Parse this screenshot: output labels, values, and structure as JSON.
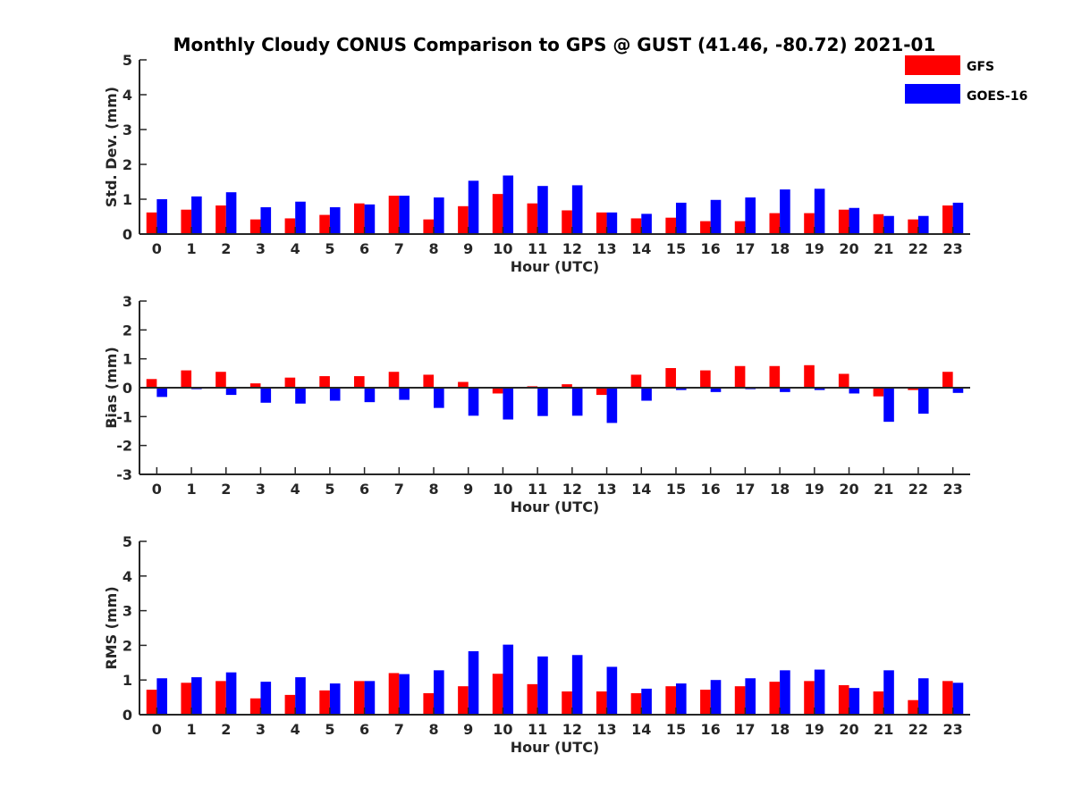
{
  "title": "Monthly Cloudy CONUS Comparison to GPS @ GUST (41.46, -80.72) 2021-01",
  "legend": [
    {
      "name": "GFS",
      "color": "#ff0000"
    },
    {
      "name": "GOES-16",
      "color": "#0000ff"
    }
  ],
  "chart_data": [
    {
      "type": "bar",
      "xlabel": "Hour (UTC)",
      "ylabel": "Std. Dev. (mm)",
      "ylim": [
        0,
        5
      ],
      "yticks": [
        0,
        1,
        2,
        3,
        4,
        5
      ],
      "categories": [
        "0",
        "1",
        "2",
        "3",
        "4",
        "5",
        "6",
        "7",
        "8",
        "9",
        "10",
        "11",
        "12",
        "13",
        "14",
        "15",
        "16",
        "17",
        "18",
        "19",
        "20",
        "21",
        "22",
        "23"
      ],
      "series": [
        {
          "name": "GFS",
          "color": "#ff0000",
          "values": [
            0.62,
            0.7,
            0.82,
            0.42,
            0.45,
            0.55,
            0.88,
            1.1,
            0.42,
            0.8,
            1.15,
            0.88,
            0.68,
            0.62,
            0.45,
            0.47,
            0.37,
            0.37,
            0.6,
            0.6,
            0.7,
            0.57,
            0.42,
            0.82
          ]
        },
        {
          "name": "GOES-16",
          "color": "#0000ff",
          "values": [
            1.0,
            1.08,
            1.2,
            0.77,
            0.93,
            0.77,
            0.85,
            1.1,
            1.05,
            1.53,
            1.68,
            1.38,
            1.4,
            0.62,
            0.58,
            0.9,
            0.98,
            1.05,
            1.28,
            1.3,
            0.75,
            0.52,
            0.52,
            0.9
          ]
        }
      ],
      "legend": "top-right",
      "grid": false
    },
    {
      "type": "bar",
      "xlabel": "Hour (UTC)",
      "ylabel": "Bias (mm)",
      "ylim": [
        -3,
        3
      ],
      "yticks": [
        -3,
        -2,
        -1,
        0,
        1,
        2,
        3
      ],
      "categories": [
        "0",
        "1",
        "2",
        "3",
        "4",
        "5",
        "6",
        "7",
        "8",
        "9",
        "10",
        "11",
        "12",
        "13",
        "14",
        "15",
        "16",
        "17",
        "18",
        "19",
        "20",
        "21",
        "22",
        "23"
      ],
      "series": [
        {
          "name": "GFS",
          "color": "#ff0000",
          "values": [
            0.3,
            0.6,
            0.55,
            0.15,
            0.35,
            0.4,
            0.4,
            0.55,
            0.45,
            0.2,
            -0.2,
            0.05,
            0.12,
            -0.25,
            0.45,
            0.68,
            0.6,
            0.75,
            0.75,
            0.78,
            0.48,
            -0.3,
            -0.08,
            0.55
          ]
        },
        {
          "name": "GOES-16",
          "color": "#0000ff",
          "values": [
            -0.32,
            -0.05,
            -0.25,
            -0.52,
            -0.55,
            -0.45,
            -0.5,
            -0.42,
            -0.7,
            -0.97,
            -1.1,
            -0.98,
            -0.97,
            -1.22,
            -0.45,
            -0.08,
            -0.15,
            -0.05,
            -0.15,
            -0.08,
            -0.2,
            -1.18,
            -0.9,
            -0.18
          ]
        }
      ],
      "grid": false
    },
    {
      "type": "bar",
      "xlabel": "Hour (UTC)",
      "ylabel": "RMS (mm)",
      "ylim": [
        0,
        5
      ],
      "yticks": [
        0,
        1,
        2,
        3,
        4,
        5
      ],
      "categories": [
        "0",
        "1",
        "2",
        "3",
        "4",
        "5",
        "6",
        "7",
        "8",
        "9",
        "10",
        "11",
        "12",
        "13",
        "14",
        "15",
        "16",
        "17",
        "18",
        "19",
        "20",
        "21",
        "22",
        "23"
      ],
      "series": [
        {
          "name": "GFS",
          "color": "#ff0000",
          "values": [
            0.72,
            0.92,
            0.97,
            0.47,
            0.57,
            0.7,
            0.97,
            1.2,
            0.62,
            0.82,
            1.18,
            0.88,
            0.67,
            0.67,
            0.62,
            0.82,
            0.72,
            0.82,
            0.95,
            0.97,
            0.85,
            0.67,
            0.42,
            0.97
          ]
        },
        {
          "name": "GOES-16",
          "color": "#0000ff",
          "values": [
            1.05,
            1.08,
            1.22,
            0.95,
            1.08,
            0.9,
            0.97,
            1.17,
            1.28,
            1.83,
            2.02,
            1.68,
            1.72,
            1.38,
            0.75,
            0.9,
            1.0,
            1.05,
            1.28,
            1.3,
            0.77,
            1.28,
            1.05,
            0.92
          ]
        }
      ],
      "grid": false
    }
  ]
}
